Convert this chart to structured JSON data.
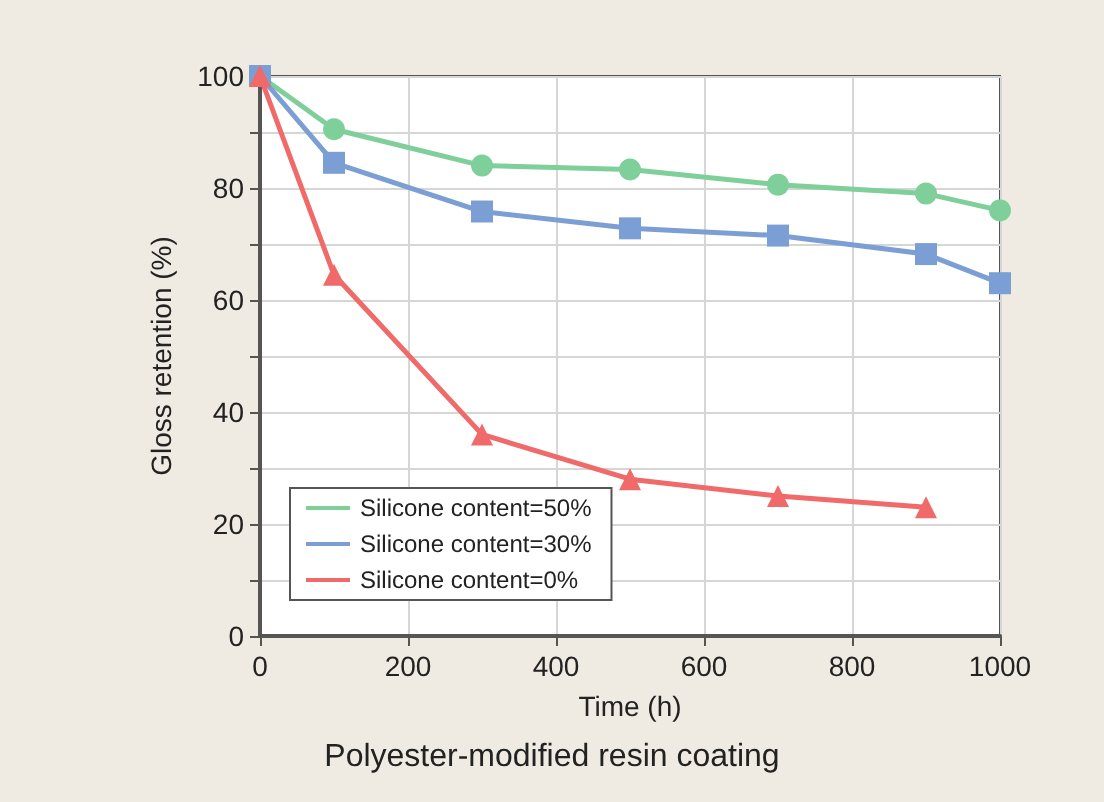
{
  "chart_data": {
    "type": "line",
    "xlabel": "Time (h)",
    "ylabel": "Gloss retention (%)",
    "annotations": [
      "Polyester-modified resin coating"
    ],
    "x": [
      0,
      100,
      300,
      500,
      700,
      900,
      1000
    ],
    "series": [
      {
        "name": "Silicone content=50%",
        "color": "#7fcf9a",
        "marker": "circle",
        "values": [
          100,
          90.5,
          84,
          83.3,
          80.6,
          79,
          76
        ]
      },
      {
        "name": "Silicone content=30%",
        "color": "#7b9fd4",
        "marker": "square",
        "values": [
          100,
          84.5,
          75.8,
          72.8,
          71.5,
          68.2,
          63
        ]
      },
      {
        "name": "Silicone content=0%",
        "color": "#f06a6a",
        "marker": "triangle",
        "values": [
          100,
          64.5,
          36,
          28,
          25,
          23,
          null
        ]
      }
    ],
    "xlim": [
      0,
      1000
    ],
    "xticks": [
      0,
      200,
      400,
      600,
      800,
      1000
    ],
    "ylim": [
      0,
      100
    ],
    "yticks": [
      0,
      {
        "value": 10,
        "label": null
      },
      20,
      {
        "value": 30,
        "label": null
      },
      40,
      {
        "value": 50,
        "label": null
      },
      60,
      {
        "value": 70,
        "label": null
      },
      80,
      {
        "value": 90,
        "label": null
      },
      100
    ],
    "grid": true,
    "legend": "bottom left",
    "line_style": "solid"
  }
}
